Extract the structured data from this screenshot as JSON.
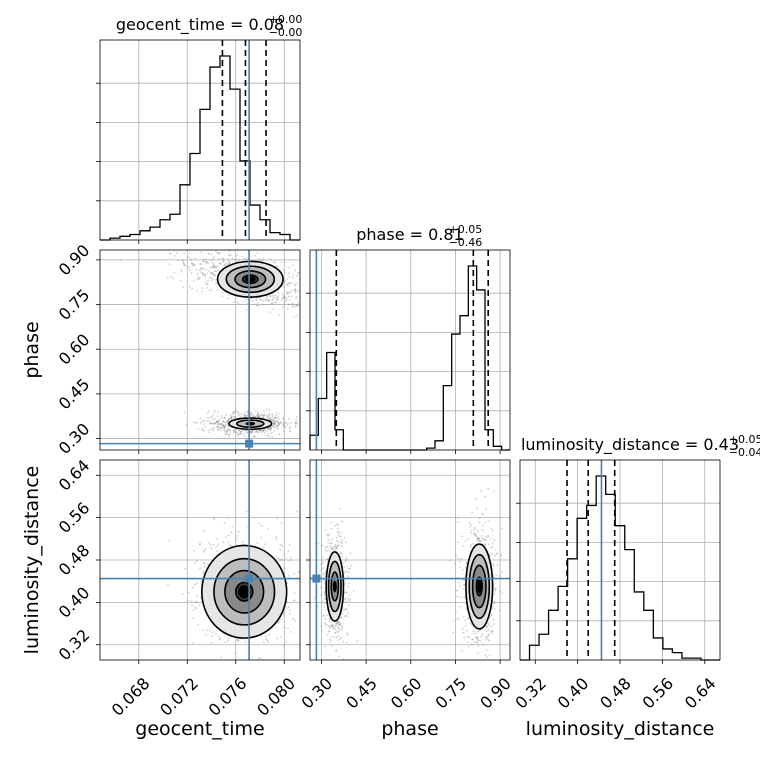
{
  "chart_data": {
    "type": "corner",
    "truth_color": "#4682b4",
    "parameters": [
      "geocent_time",
      "phase",
      "luminosity_distance"
    ],
    "axis_labels": {
      "geocent_time": "geocent_time",
      "phase": "phase",
      "luminosity_distance": "luminosity_distance"
    },
    "titles": [
      {
        "param": "geocent_time",
        "name": "geocent_time",
        "median": "0.08",
        "upper": "+0.00",
        "lower": "−0.00"
      },
      {
        "param": "phase",
        "name": "phase",
        "median": "0.81",
        "upper": "+0.05",
        "lower": "−0.46"
      },
      {
        "param": "luminosity_distance",
        "name": "luminosity_distance",
        "median": "0.43",
        "upper": "+0.05",
        "lower": "−0.04"
      }
    ],
    "ranges": {
      "geocent_time": [
        0.0648,
        0.0813
      ],
      "phase": [
        0.2616,
        0.9332
      ],
      "luminosity_distance": [
        0.2912,
        0.6688
      ]
    },
    "ticks": {
      "geocent_time": [
        "0.068",
        "0.072",
        "0.076",
        "0.080"
      ],
      "phase": [
        "0.30",
        "0.45",
        "0.60",
        "0.75",
        "0.90"
      ],
      "luminosity_distance": [
        "0.32",
        "0.40",
        "0.48",
        "0.56",
        "0.64"
      ]
    },
    "truths": {
      "geocent_time": 0.0771,
      "phase": 0.283,
      "luminosity_distance": 0.445
    },
    "quantiles": {
      "geocent_time": [
        0.0749,
        0.0768,
        0.0785
      ],
      "phase": [
        0.35,
        0.81,
        0.86
      ],
      "luminosity_distance": [
        0.38,
        0.42,
        0.47
      ]
    },
    "histograms": {
      "geocent_time": [
        0.0,
        0.01,
        0.02,
        0.03,
        0.05,
        0.07,
        0.11,
        0.14,
        0.3,
        0.47,
        0.71,
        0.94,
        1.0,
        0.82,
        0.43,
        0.19,
        0.11,
        0.04,
        0.03,
        0.0
      ],
      "phase": [
        0.08,
        0.28,
        0.53,
        0.11,
        0.0,
        0.0,
        0.0,
        0.0,
        0.0,
        0.0,
        0.0,
        0.0,
        0.0,
        0.0,
        0.01,
        0.05,
        0.35,
        0.63,
        0.73,
        1.0,
        0.87,
        0.11,
        0.02,
        0.0
      ],
      "luminosity_distance": [
        0.0,
        0.08,
        0.14,
        0.27,
        0.4,
        0.55,
        0.77,
        0.84,
        1.0,
        0.9,
        0.73,
        0.6,
        0.37,
        0.27,
        0.12,
        0.06,
        0.04,
        0.01,
        0.01,
        0.0,
        0.0
      ]
    },
    "clusters": [
      {
        "pair": [
          "geocent_time",
          "phase"
        ],
        "cx": 0.0772,
        "cy": 0.835,
        "sx": 0.0018,
        "sy": 0.04,
        "level_scale": [
          0.35,
          0.7,
          1.1,
          1.5
        ]
      },
      {
        "pair": [
          "geocent_time",
          "phase"
        ],
        "cx": 0.0772,
        "cy": 0.35,
        "sx": 0.0016,
        "sy": 0.017,
        "level_scale": [
          0.2,
          0.7,
          1.1
        ]
      },
      {
        "pair": [
          "geocent_time",
          "luminosity_distance"
        ],
        "cx": 0.0767,
        "cy": 0.42,
        "sx": 0.002,
        "sy": 0.05,
        "level_scale": [
          0.35,
          0.8,
          1.25,
          1.75
        ]
      },
      {
        "pair": [
          "phase",
          "luminosity_distance"
        ],
        "cx": 0.345,
        "cy": 0.43,
        "sx": 0.02,
        "sy": 0.045,
        "level_scale": [
          0.2,
          0.6,
          1.05,
          1.45
        ]
      },
      {
        "pair": [
          "phase",
          "luminosity_distance"
        ],
        "cx": 0.83,
        "cy": 0.43,
        "sx": 0.028,
        "sy": 0.05,
        "level_scale": [
          0.35,
          0.8,
          1.2,
          1.6
        ]
      }
    ]
  }
}
